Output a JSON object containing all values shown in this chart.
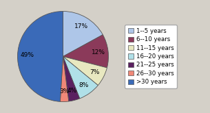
{
  "labels": [
    "1--5 years",
    "6--10 years",
    "11--15 years",
    "16--20 years",
    "21--25 years",
    "26--30 years",
    ">30 years"
  ],
  "values": [
    17,
    12,
    7,
    8,
    4,
    3,
    49
  ],
  "colors": [
    "#aec6e8",
    "#8b3a5a",
    "#e8e8c0",
    "#b0e0e8",
    "#5a2060",
    "#f08878",
    "#3a6ab8"
  ],
  "startangle": 90,
  "counterclock": false,
  "background_color": "#d4d0c8",
  "legend_fontsize": 6.2,
  "pct_fontsize": 6.5
}
